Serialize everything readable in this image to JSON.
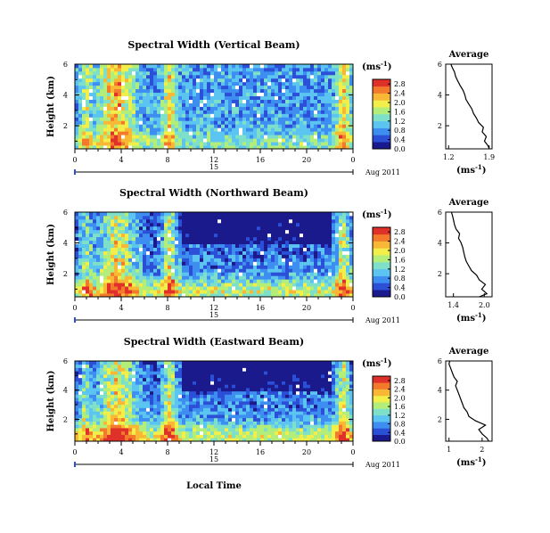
{
  "figure": {
    "xlabel_bottom": "Local Time",
    "date_label": "Aug 2011",
    "unit_label": "(ms",
    "unit_exp": "-1",
    "unit_close": ")",
    "colors": {
      "scale": [
        "#1a1a8c",
        "#2b4fd6",
        "#3d8ef0",
        "#5cc4f0",
        "#7ee0c8",
        "#b4ee7a",
        "#f2ee4a",
        "#f8b836",
        "#f27a2a",
        "#e0302a"
      ],
      "missing": "#ffffff"
    }
  },
  "chart_data": [
    {
      "type": "heatmap",
      "title": "Spectral Width (Vertical Beam)",
      "ylabel": "Height (km)",
      "x_ticks": [
        "0",
        "4",
        "8",
        "12",
        "16",
        "20",
        "0"
      ],
      "x_range": [
        0,
        24
      ],
      "y_ticks": [
        "6",
        "4",
        "2"
      ],
      "y_range": [
        0.5,
        6
      ],
      "day_marker": "15",
      "colorbar": {
        "ticks": [
          "2.8",
          "2.4",
          "2.0",
          "1.6",
          "1.2",
          "0.8",
          "0.4",
          "0.0"
        ],
        "range": [
          0,
          3.0
        ]
      },
      "average": {
        "title": "Average",
        "xlabel": "(ms",
        "xlabel_exp": "-1",
        "xlabel_close": ")",
        "x_ticks": [
          "1.2",
          "1.9"
        ],
        "x_range": [
          1.15,
          1.95
        ],
        "y_range": [
          0.5,
          6
        ],
        "profile": {
          "height": [
            0.5,
            0.7,
            1.0,
            1.3,
            1.6,
            1.9,
            2.2,
            2.5,
            2.8,
            3.1,
            3.4,
            3.7,
            4.0,
            4.3,
            4.6,
            4.9,
            5.2,
            5.5,
            5.8,
            6.0
          ],
          "value": [
            1.9,
            1.88,
            1.82,
            1.85,
            1.78,
            1.8,
            1.72,
            1.68,
            1.63,
            1.6,
            1.55,
            1.5,
            1.48,
            1.45,
            1.4,
            1.36,
            1.32,
            1.3,
            1.26,
            1.24
          ]
        }
      }
    },
    {
      "type": "heatmap",
      "title": "Spectral Width (Northward Beam)",
      "ylabel": "Height (km)",
      "x_ticks": [
        "0",
        "4",
        "8",
        "12",
        "16",
        "20",
        "0"
      ],
      "x_range": [
        0,
        24
      ],
      "y_ticks": [
        "6",
        "4",
        "2"
      ],
      "y_range": [
        0.5,
        6
      ],
      "day_marker": "15",
      "colorbar": {
        "ticks": [
          "2.8",
          "2.4",
          "2.0",
          "1.6",
          "1.2",
          "0.8",
          "0.4",
          "0.0"
        ],
        "range": [
          0,
          3.0
        ]
      },
      "average": {
        "title": "Average",
        "xlabel": "(ms",
        "xlabel_exp": "-1",
        "xlabel_close": ")",
        "x_ticks": [
          "1.4",
          "2.0"
        ],
        "x_range": [
          1.25,
          2.15
        ],
        "y_range": [
          0.5,
          6
        ],
        "profile": {
          "height": [
            0.5,
            0.7,
            1.0,
            1.3,
            1.6,
            1.9,
            2.2,
            2.5,
            2.8,
            3.1,
            3.4,
            3.7,
            4.0,
            4.3,
            4.6,
            4.9,
            5.2,
            5.5,
            5.8,
            6.0
          ],
          "value": [
            1.9,
            2.05,
            1.95,
            2.02,
            1.9,
            1.85,
            1.75,
            1.7,
            1.65,
            1.62,
            1.6,
            1.58,
            1.55,
            1.5,
            1.52,
            1.45,
            1.42,
            1.4,
            1.38,
            1.36
          ]
        }
      }
    },
    {
      "type": "heatmap",
      "title": "Spectral Width (Eastward Beam)",
      "ylabel": "Height (km)",
      "x_ticks": [
        "0",
        "4",
        "8",
        "12",
        "16",
        "20",
        "0"
      ],
      "x_range": [
        0,
        24
      ],
      "y_ticks": [
        "6",
        "4",
        "2"
      ],
      "y_range": [
        0.5,
        6
      ],
      "day_marker": "15",
      "colorbar": {
        "ticks": [
          "2.8",
          "2.4",
          "2.0",
          "1.6",
          "1.2",
          "0.8",
          "0.4",
          "0.0"
        ],
        "range": [
          0,
          3.0
        ]
      },
      "average": {
        "title": "Average",
        "xlabel": "(ms",
        "xlabel_exp": "-1",
        "xlabel_close": ")",
        "x_ticks": [
          "1",
          "2"
        ],
        "x_range": [
          0.9,
          2.3
        ],
        "y_range": [
          0.5,
          6
        ],
        "profile": {
          "height": [
            0.5,
            0.7,
            1.0,
            1.3,
            1.6,
            1.9,
            2.2,
            2.5,
            2.8,
            3.1,
            3.4,
            3.7,
            4.0,
            4.3,
            4.6,
            4.9,
            5.2,
            5.5,
            5.8,
            6.0
          ],
          "value": [
            2.2,
            2.15,
            2.0,
            1.9,
            2.1,
            1.8,
            1.6,
            1.55,
            1.45,
            1.4,
            1.35,
            1.3,
            1.25,
            1.2,
            1.25,
            1.15,
            1.1,
            1.05,
            1.0,
            1.02
          ]
        }
      }
    }
  ]
}
